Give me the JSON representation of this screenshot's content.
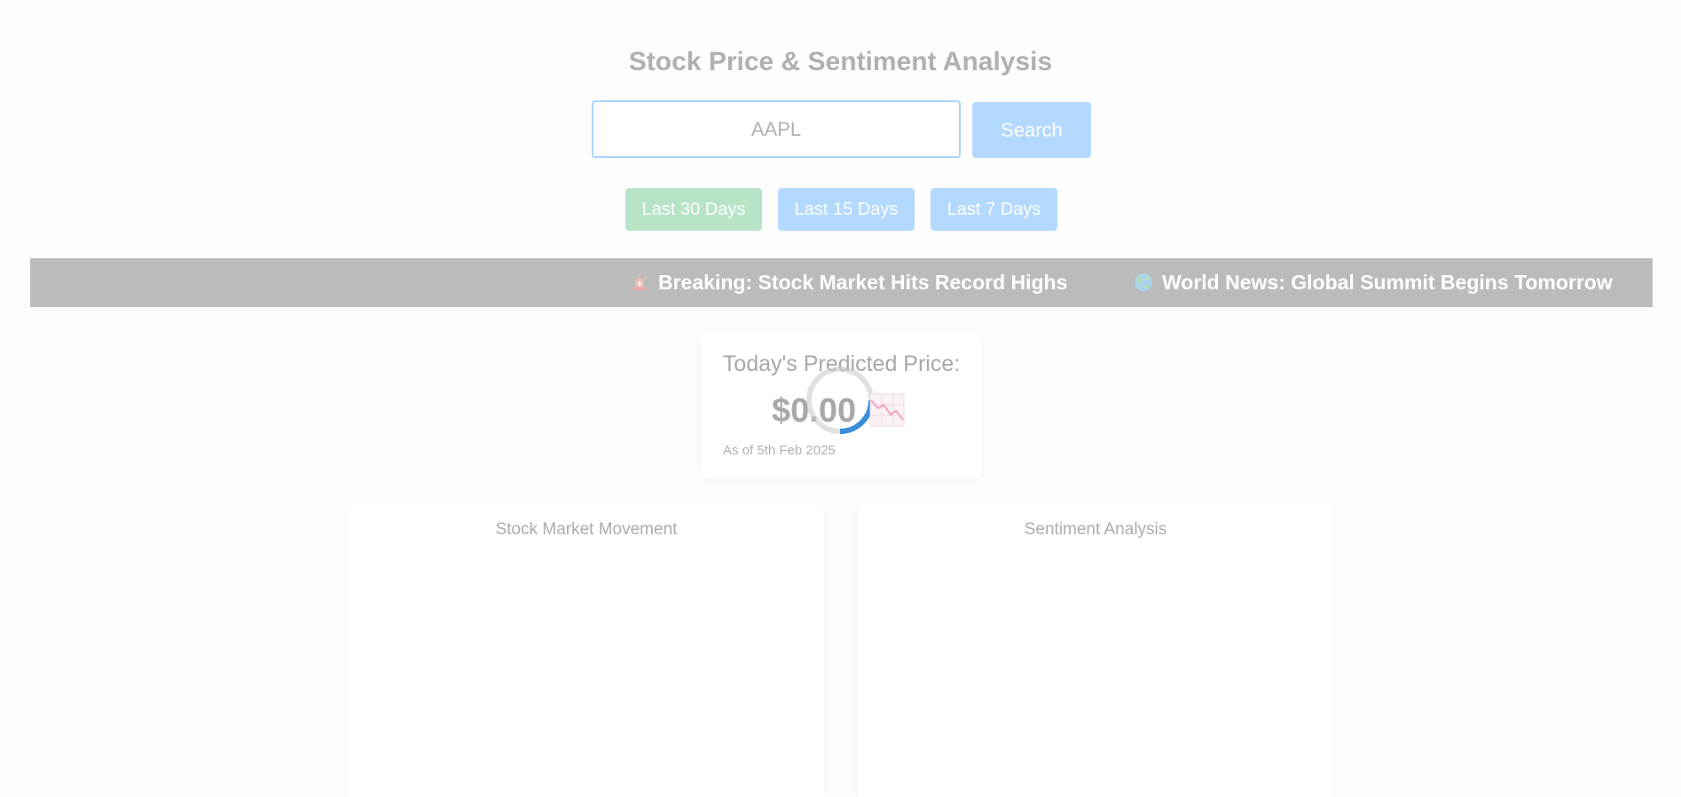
{
  "header": {
    "title": "Stock Price & Sentiment Analysis"
  },
  "search": {
    "placeholder": "AAPL",
    "button_label": "Search"
  },
  "ranges": [
    {
      "label": "Last 30 Days",
      "color": "#b7e4c7"
    },
    {
      "label": "Last 15 Days",
      "color": "#b3d9ff"
    },
    {
      "label": "Last 7 Days",
      "color": "#b3d9ff"
    }
  ],
  "ticker": {
    "items": [
      {
        "icon": "siren-icon",
        "text": "Breaking: Stock Market Hits Record Highs"
      },
      {
        "icon": "globe-icon",
        "text": "World News: Global Summit Begins Tomorrow"
      }
    ]
  },
  "prediction": {
    "label": "Today's Predicted Price:",
    "value": "$0.00",
    "date": "As of 5th Feb 2025",
    "icons": [
      "loading-spinner-icon",
      "chart-down-icon"
    ]
  },
  "charts": {
    "stock_movement_title": "Stock Market Movement",
    "sentiment_title": "Sentiment Analysis"
  },
  "colors": {
    "accent_blue": "#b3d9ff",
    "accent_green": "#b7e4c7",
    "ticker_bg": "#bbbbbb",
    "spinner_active": "#3a8fd8"
  }
}
